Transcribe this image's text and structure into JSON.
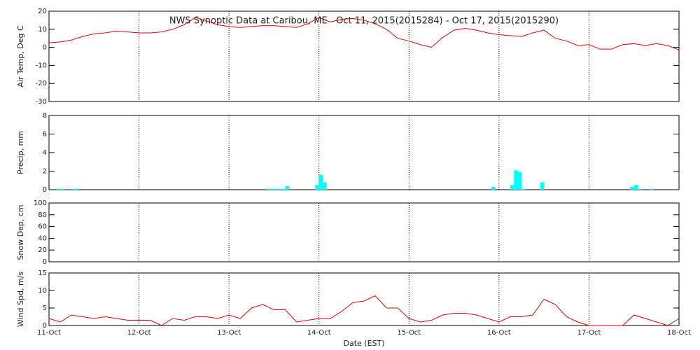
{
  "chart_data": [
    {
      "type": "line",
      "title": "NWS Synoptic Data at Caribou, ME   Oct 11, 2015(2015284) - Oct 17, 2015(2015290)",
      "y_label": "Air Temp, Deg C",
      "color": "#e00000",
      "xlim": [
        0,
        168
      ],
      "ylim": [
        -30,
        20
      ],
      "yticks": [
        -30,
        -20,
        -10,
        0,
        10,
        20
      ],
      "grid": true,
      "x": [
        0,
        3,
        6,
        9,
        12,
        15,
        18,
        21,
        24,
        27,
        30,
        33,
        36,
        39,
        42,
        45,
        48,
        51,
        54,
        57,
        60,
        63,
        66,
        69,
        72,
        75,
        78,
        81,
        84,
        87,
        90,
        93,
        96,
        99,
        102,
        105,
        108,
        111,
        114,
        117,
        120,
        123,
        126,
        129,
        132,
        135,
        138,
        141,
        144,
        147,
        150,
        153,
        156,
        159,
        162,
        165,
        168
      ],
      "values": [
        2.5,
        3,
        4,
        6,
        7.5,
        8,
        9,
        8.5,
        8,
        8,
        8.5,
        10,
        12.5,
        16.5,
        14.5,
        12.5,
        11.5,
        11,
        11.5,
        12,
        12,
        11.5,
        11,
        13,
        16.5,
        14,
        15.5,
        16,
        15,
        13,
        10,
        5,
        3.5,
        1.5,
        0,
        5.5,
        9.5,
        10.5,
        9.5,
        8,
        7,
        6.5,
        6,
        8,
        9.5,
        5,
        3.5,
        1,
        1.5,
        -1,
        -1,
        1.5,
        2,
        1,
        2,
        1,
        -1.5
      ]
    },
    {
      "type": "bar",
      "y_label": "Precip, mm",
      "color": "#00ffff",
      "xlim": [
        0,
        168
      ],
      "ylim": [
        0,
        8
      ],
      "yticks": [
        0,
        2,
        4,
        6,
        8
      ],
      "grid": true,
      "x": [
        2,
        3,
        6,
        7,
        58,
        59,
        60,
        61,
        62,
        63,
        71,
        72,
        73,
        118,
        123,
        124,
        125,
        126,
        131,
        155,
        156,
        157,
        160
      ],
      "values": [
        0.1,
        0.1,
        0.1,
        0.1,
        0.1,
        0.1,
        0.1,
        0.1,
        0.1,
        0.4,
        0.5,
        1.6,
        0.8,
        0.3,
        0.5,
        2.1,
        1.9,
        0.1,
        0.8,
        0.3,
        0.5,
        0.1,
        0.1
      ]
    },
    {
      "type": "bar",
      "y_label": "Snow Dep, cm",
      "color": "#00ffff",
      "xlim": [
        0,
        168
      ],
      "ylim": [
        0,
        100
      ],
      "yticks": [
        0,
        20,
        40,
        60,
        80,
        100
      ],
      "grid": true,
      "x": [],
      "values": []
    },
    {
      "type": "line",
      "y_label": "Wind Spd, m/s",
      "x_label": "Date (EST)",
      "color": "#e00000",
      "xlim": [
        0,
        168
      ],
      "ylim": [
        0,
        15
      ],
      "yticks": [
        0,
        5,
        10,
        15
      ],
      "grid": true,
      "xticks": [
        {
          "value": 0,
          "label": "11-Oct"
        },
        {
          "value": 24,
          "label": "12-Oct"
        },
        {
          "value": 48,
          "label": "13-Oct"
        },
        {
          "value": 72,
          "label": "14-Oct"
        },
        {
          "value": 96,
          "label": "15-Oct"
        },
        {
          "value": 120,
          "label": "16-Oct"
        },
        {
          "value": 144,
          "label": "17-Oct"
        },
        {
          "value": 168,
          "label": "18-Oct"
        }
      ],
      "x": [
        0,
        3,
        6,
        9,
        12,
        15,
        18,
        21,
        24,
        27,
        30,
        33,
        36,
        39,
        42,
        45,
        48,
        51,
        54,
        57,
        60,
        63,
        66,
        69,
        72,
        75,
        78,
        81,
        84,
        87,
        90,
        93,
        96,
        99,
        102,
        105,
        108,
        111,
        114,
        117,
        120,
        123,
        126,
        129,
        132,
        135,
        138,
        141,
        144,
        147,
        150,
        153,
        156,
        159,
        162,
        165,
        168
      ],
      "values": [
        2,
        1,
        3,
        2.5,
        2,
        2.5,
        2,
        1.5,
        1.5,
        1.5,
        0,
        2,
        1.5,
        2.5,
        2.5,
        2,
        3,
        2,
        5,
        6,
        4.5,
        4.5,
        1,
        1.5,
        2,
        2,
        4,
        6.5,
        7,
        8.5,
        5,
        5,
        2,
        1,
        1.5,
        3,
        3.5,
        3.5,
        3,
        2,
        1,
        2.5,
        2.5,
        3,
        7.5,
        6,
        2.5,
        1,
        0,
        0,
        0,
        0,
        3,
        2,
        1,
        0,
        2
      ]
    }
  ]
}
